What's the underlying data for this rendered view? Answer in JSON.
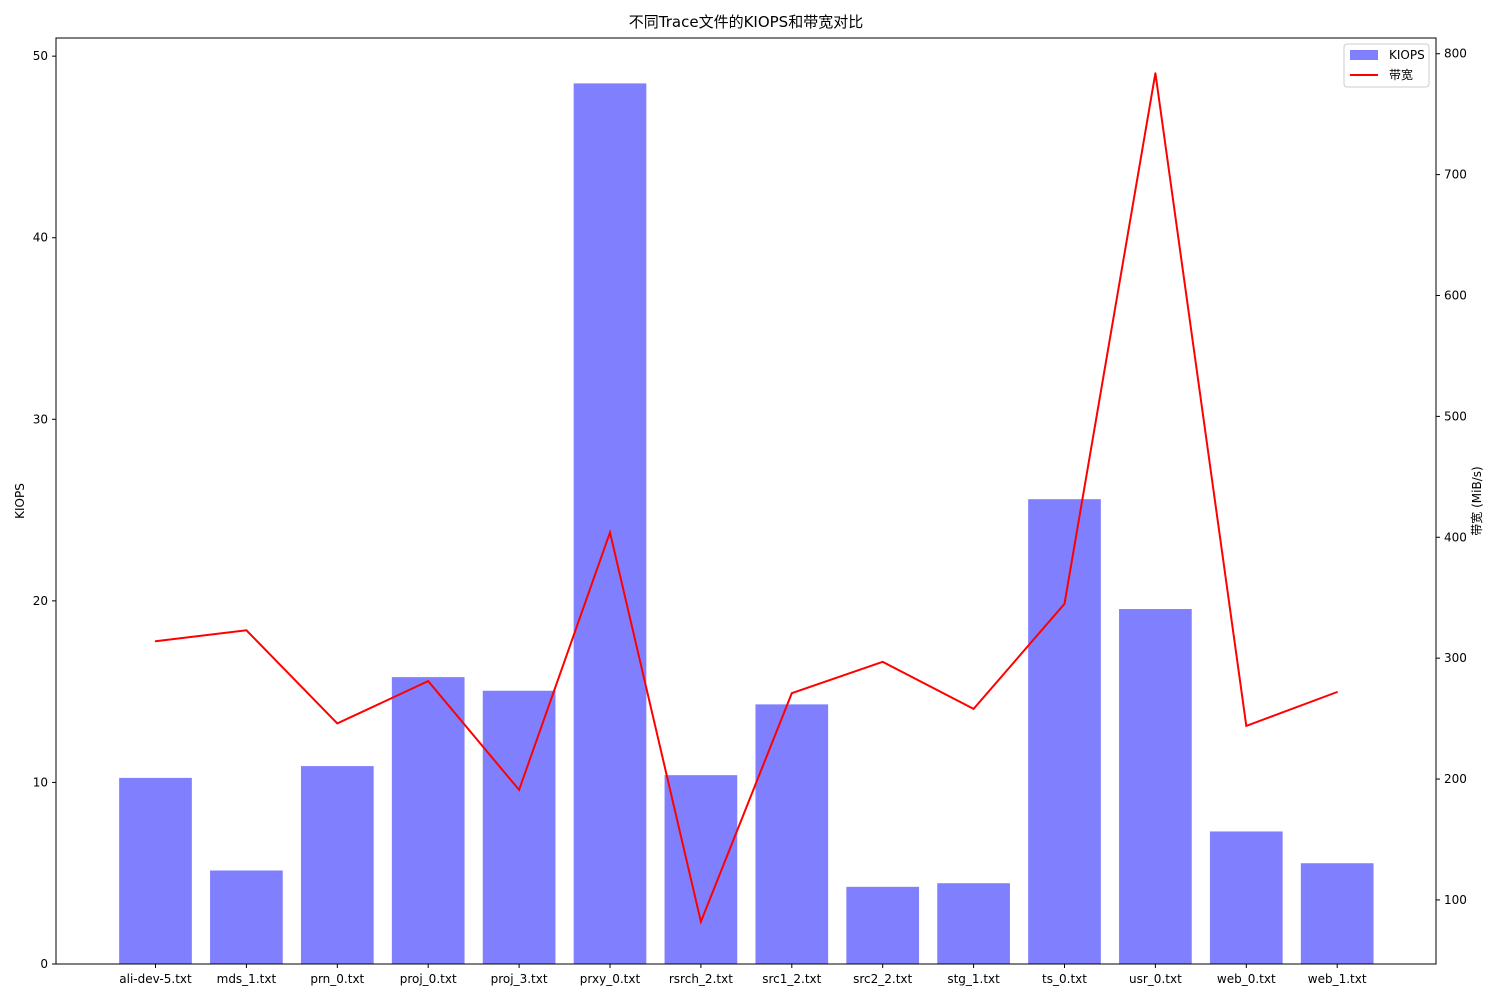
{
  "chart_data": {
    "type": "bar+line",
    "title": "不同Trace文件的KIOPS和带宽对比",
    "categories": [
      "ali-dev-5.txt",
      "mds_1.txt",
      "prn_0.txt",
      "proj_0.txt",
      "proj_3.txt",
      "prxy_0.txt",
      "rsrch_2.txt",
      "src1_2.txt",
      "src2_2.txt",
      "stg_1.txt",
      "ts_0.txt",
      "usr_0.txt",
      "web_0.txt",
      "web_1.txt"
    ],
    "series": [
      {
        "name": "KIOPS",
        "type": "bar",
        "axis": "left",
        "color": "#8080ff",
        "values": [
          10.25,
          5.15,
          10.9,
          15.8,
          15.05,
          48.5,
          10.4,
          14.3,
          4.25,
          4.45,
          25.6,
          19.55,
          7.3,
          5.55
        ]
      },
      {
        "name": "带宽",
        "type": "line",
        "axis": "right",
        "color": "#ff0000",
        "values": [
          314,
          323,
          246,
          281,
          191,
          404,
          82,
          271,
          297,
          258,
          345,
          784,
          244,
          272
        ]
      }
    ],
    "ylabel_left": "KIOPS",
    "ylabel_left_color": "#0000ff",
    "ylabel_right": "带宽 (MiB/s)",
    "ylabel_right_color": "#ff0000",
    "ylim_left": [
      0,
      51
    ],
    "ylim_right": [
      47,
      813
    ],
    "yticks_left": [
      0,
      10,
      20,
      30,
      40,
      50
    ],
    "yticks_right": [
      100,
      200,
      300,
      400,
      500,
      600,
      700,
      800
    ],
    "grid": false,
    "legend": "top-right"
  }
}
